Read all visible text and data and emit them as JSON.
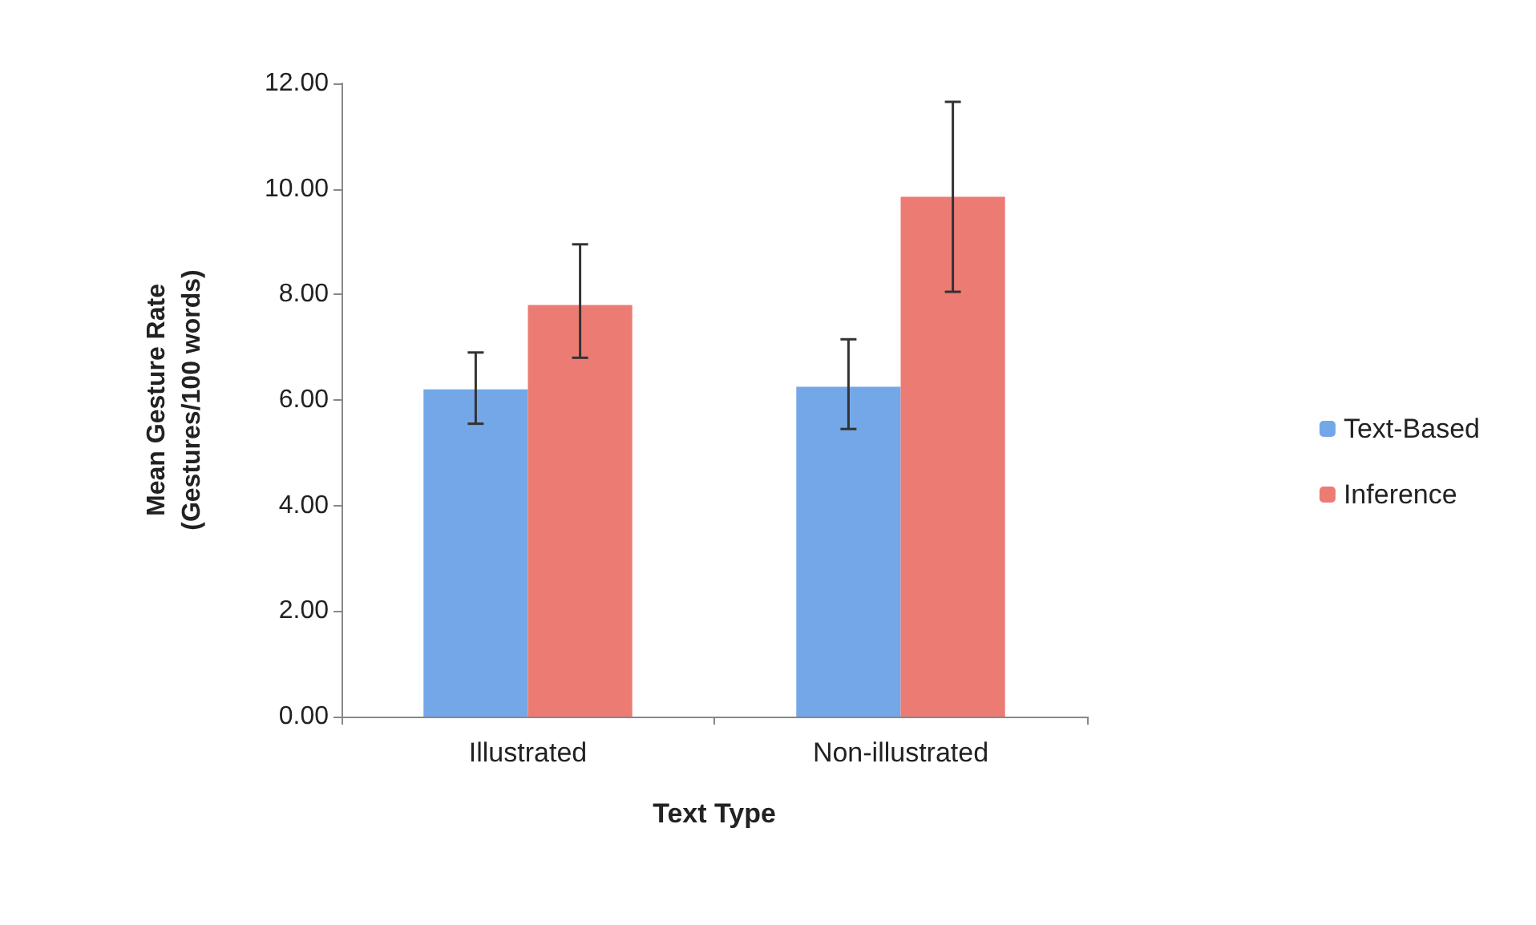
{
  "chart_data": {
    "type": "bar",
    "xlabel": "Text Type",
    "ylabel": "Mean Gesture Rate\n(Gestures/100 words)",
    "categories": [
      "Illustrated",
      "Non-illustrated"
    ],
    "series": [
      {
        "name": "Text-Based",
        "color": "#74a7e8",
        "values": [
          6.2,
          6.25
        ],
        "errors": [
          [
            5.55,
            6.9
          ],
          [
            5.45,
            7.15
          ]
        ]
      },
      {
        "name": "Inference",
        "color": "#ec7b73",
        "values": [
          7.8,
          9.85
        ],
        "errors": [
          [
            6.8,
            8.95
          ],
          [
            8.05,
            11.65
          ]
        ]
      }
    ],
    "ylim": [
      0,
      12
    ],
    "yticks": [
      {
        "value": 0,
        "label": "0.00"
      },
      {
        "value": 2,
        "label": "2.00"
      },
      {
        "value": 4,
        "label": "4.00"
      },
      {
        "value": 6,
        "label": "6.00"
      },
      {
        "value": 8,
        "label": "8.00"
      },
      {
        "value": 10,
        "label": "10.00"
      },
      {
        "value": 12,
        "label": "12.00"
      }
    ],
    "grid": false,
    "legend": "right"
  }
}
